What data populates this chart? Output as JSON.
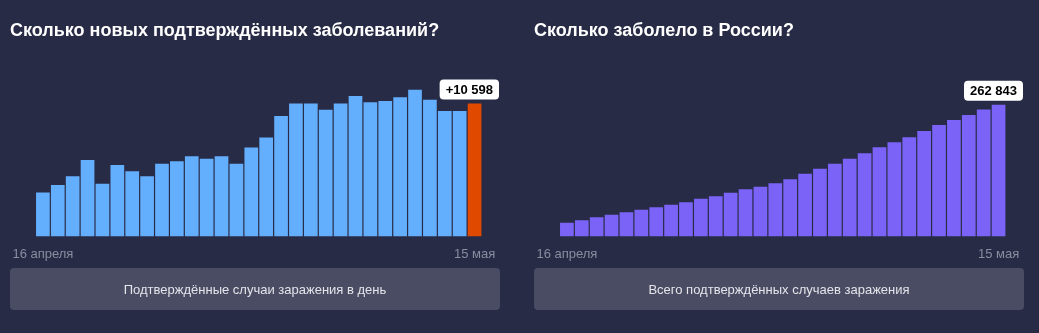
{
  "chart_data": [
    {
      "type": "bar",
      "title": "Сколько новых подтверждённых заболеваний?",
      "categories": [
        "16 апреля",
        null,
        null,
        null,
        null,
        null,
        null,
        null,
        null,
        null,
        null,
        null,
        null,
        null,
        null,
        null,
        null,
        null,
        null,
        null,
        null,
        null,
        null,
        null,
        null,
        null,
        null,
        null,
        null,
        "15 мая"
      ],
      "values": [
        3500,
        4100,
        4800,
        6100,
        4200,
        5700,
        5200,
        4800,
        5800,
        6000,
        6400,
        6200,
        6400,
        5800,
        7100,
        7900,
        9600,
        10600,
        10600,
        10100,
        10600,
        11200,
        10700,
        10800,
        11100,
        11700,
        10900,
        10000,
        10000,
        10598
      ],
      "colors": [
        "#64aefe",
        "#64aefe",
        "#64aefe",
        "#64aefe",
        "#64aefe",
        "#64aefe",
        "#64aefe",
        "#64aefe",
        "#64aefe",
        "#64aefe",
        "#64aefe",
        "#64aefe",
        "#64aefe",
        "#64aefe",
        "#64aefe",
        "#64aefe",
        "#64aefe",
        "#64aefe",
        "#64aefe",
        "#64aefe",
        "#64aefe",
        "#64aefe",
        "#64aefe",
        "#64aefe",
        "#64aefe",
        "#64aefe",
        "#64aefe",
        "#64aefe",
        "#64aefe",
        "#e04a00"
      ],
      "value_labels": [
        null,
        null,
        null,
        null,
        null,
        null,
        null,
        null,
        null,
        null,
        null,
        null,
        null,
        null,
        null,
        null,
        null,
        null,
        null,
        null,
        null,
        null,
        null,
        null,
        null,
        null,
        null,
        null,
        null,
        "+10 598"
      ],
      "annotations": [
        "Подтверждённые случаи заражения в день"
      ]
    },
    {
      "type": "bar",
      "title": "Сколько заболело в России?",
      "categories": [
        "16 апреля",
        null,
        null,
        null,
        null,
        null,
        null,
        null,
        null,
        null,
        null,
        null,
        null,
        null,
        null,
        null,
        null,
        null,
        null,
        null,
        null,
        null,
        null,
        null,
        null,
        null,
        null,
        null,
        null,
        "15 мая"
      ],
      "values": [
        27000,
        32000,
        38000,
        43000,
        48000,
        53000,
        58000,
        63000,
        68000,
        75000,
        80000,
        87000,
        94000,
        99000,
        106000,
        114000,
        125000,
        135000,
        145000,
        155000,
        166000,
        178000,
        188000,
        198000,
        210000,
        222000,
        232000,
        242000,
        253000,
        262843
      ],
      "color": "#7b63f8",
      "value_labels": [
        null,
        null,
        null,
        null,
        null,
        null,
        null,
        null,
        null,
        null,
        null,
        null,
        null,
        null,
        null,
        null,
        null,
        null,
        null,
        null,
        null,
        null,
        null,
        null,
        null,
        null,
        null,
        null,
        null,
        "262 843"
      ],
      "annotations": [
        "Всего подтверждённых случаев заражения"
      ]
    }
  ]
}
